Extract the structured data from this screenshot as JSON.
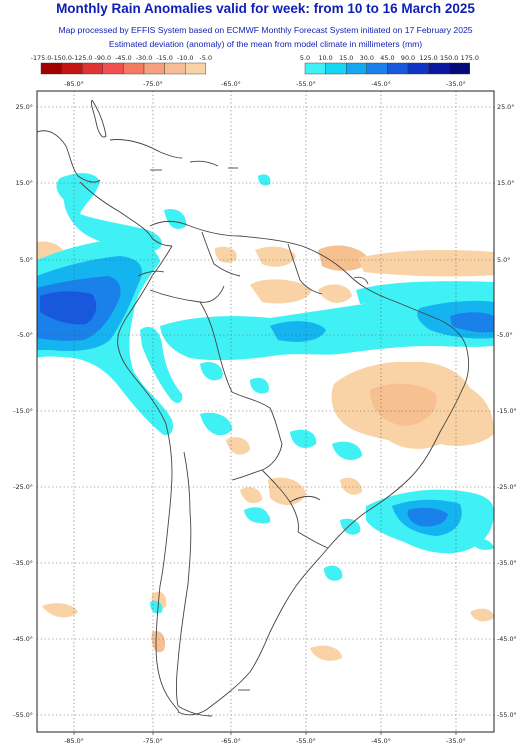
{
  "header": {
    "title": "Monthly Rain Anomalies valid for week: from 10 to 16 March 2025",
    "subtitle1": "Map processed by EFFIS System based on ECMWF Monthly Forecast System initiated on 17 February 2025",
    "subtitle2": "Estimated deviation (anomaly) of the mean from model climate in millimeters (mm)"
  },
  "legend": {
    "dry": {
      "labels": [
        "-175.0",
        "-150.0",
        "-125.0",
        "-90.0",
        "-45.0",
        "-30.0",
        "-15.0",
        "-10.0",
        "-5.0"
      ],
      "colors": [
        "#a00000",
        "#c41414",
        "#e03434",
        "#f05050",
        "#f47a62",
        "#f6a080",
        "#f8bc94",
        "#f9d3a6"
      ]
    },
    "wet": {
      "labels": [
        "5.0",
        "10.0",
        "15.0",
        "30.0",
        "45.0",
        "90.0",
        "125.0",
        "150.0",
        "175.0"
      ],
      "colors": [
        "#3ff0f4",
        "#12d8f4",
        "#14a8f0",
        "#1a80ea",
        "#1858dc",
        "#1034c4",
        "#0a18a0",
        "#050a78"
      ]
    }
  },
  "map": {
    "lon_labels": [
      "-85.0°",
      "-75.0°",
      "-65.0°",
      "-55.0°",
      "-45.0°",
      "-35.0°"
    ],
    "lat_labels": [
      "25.0°",
      "15.0°",
      "5.0°",
      "-5.0°",
      "-15.0°",
      "-25.0°",
      "-35.0°",
      "-45.0°",
      "-55.0°"
    ],
    "anomaly_colors": {
      "dry_light": "#f9d3a6",
      "dry_mid": "#f6c090",
      "wet_light": "#3ff0f4",
      "wet_mid": "#14b4f0",
      "wet_strong": "#1a80ea",
      "wet_heavy": "#1858dc"
    },
    "coast_color": "#444444",
    "grid_color": "#555555"
  }
}
